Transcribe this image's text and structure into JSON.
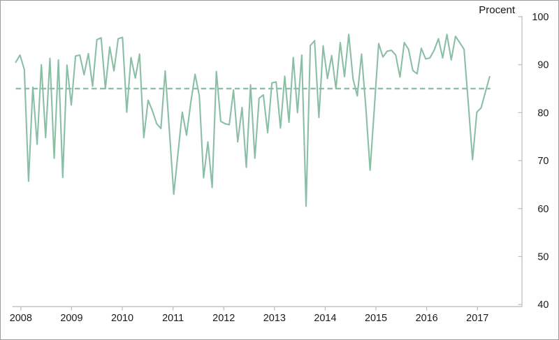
{
  "chart_data": {
    "type": "line",
    "unit": "Procent",
    "frequency": "monthly",
    "x_tick_labels": [
      "2008",
      "2009",
      "2010",
      "2011",
      "2012",
      "2013",
      "2014",
      "2015",
      "2016",
      "2017"
    ],
    "yticks": [
      40,
      50,
      60,
      70,
      80,
      90,
      100
    ],
    "ylim": [
      40,
      100
    ],
    "grid": false,
    "legend": "none",
    "axis_color": "#bfbfbf",
    "text_color": "#1a1a1a",
    "series": [
      {
        "name": "series-1",
        "color": "#8abfa6",
        "start": "2008-01",
        "values": [
          90.5,
          92,
          89,
          65.7,
          85.3,
          73.4,
          90,
          74.8,
          91.3,
          70.5,
          91,
          66.5,
          89.9,
          81.6,
          91.8,
          92,
          87.9,
          92.3,
          85.5,
          95.2,
          95.6,
          85,
          93.7,
          88.7,
          95.4,
          95.7,
          80.1,
          91.5,
          87.2,
          92.2,
          74.8,
          82.6,
          80.4,
          77.7,
          76.7,
          88.7,
          76,
          63,
          71.5,
          80.1,
          75.3,
          82.1,
          88,
          83.5,
          66.4,
          73.9,
          64.4,
          88.6,
          78.2,
          77.7,
          77.5,
          84.7,
          73.9,
          81.1,
          68.6,
          85.8,
          70.5,
          83,
          83.7,
          75.8,
          86.2,
          86.4,
          76.8,
          87.6,
          78,
          91.5,
          80,
          92,
          60.5,
          94,
          95,
          79,
          93.9,
          87.1,
          91.9,
          85,
          94.6,
          87.5,
          96.3,
          87,
          83.5,
          92.2,
          81,
          68,
          81,
          94.4,
          91.6,
          92.8,
          93,
          92,
          87.4,
          94.6,
          93.2,
          88.8,
          88.1,
          93.4,
          91.2,
          91.4,
          93,
          95.4,
          91.4,
          96.3,
          91,
          95.9,
          94.6,
          93.2,
          82,
          70.2,
          80.1,
          81,
          84.3,
          87.5
        ]
      }
    ],
    "reference_line": {
      "value": 85,
      "style": "dashed",
      "color": "#8abfa6"
    }
  }
}
